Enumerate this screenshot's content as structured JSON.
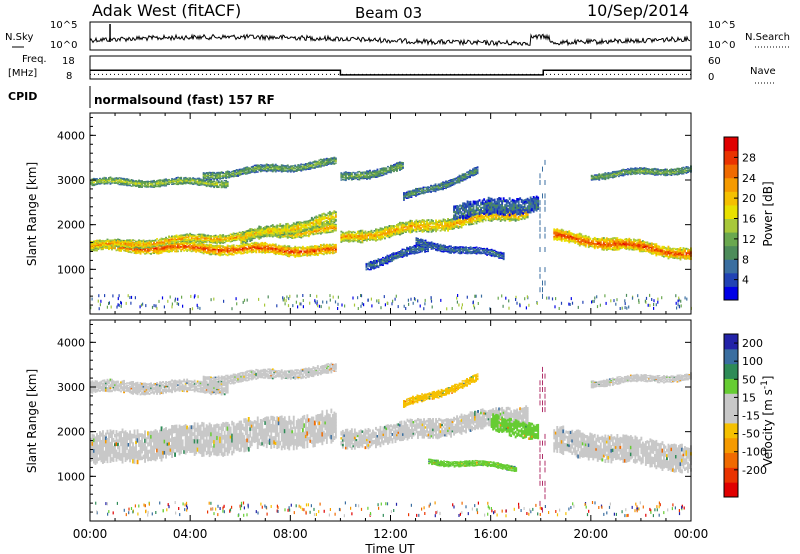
{
  "header": {
    "radar": "Adak West (fitACF)",
    "beam": "Beam 03",
    "date": "10/Sep/2014"
  },
  "noise_panel": {
    "left_label": "N.Sky",
    "right_label": "N.Search",
    "left_ticks": [
      "10^5",
      "10^0"
    ],
    "right_ticks": [
      "10^5",
      "10^0"
    ]
  },
  "freq_panel": {
    "left_label_1": "Freq.",
    "left_label_2": "[MHz]",
    "right_label": "Nave",
    "left_ticks": [
      "18",
      "8"
    ],
    "right_ticks": [
      "60",
      "0"
    ],
    "freq_steps": [
      {
        "t_start": 0,
        "t_end": 10.0,
        "mhz": 11.8
      },
      {
        "t_start": 10.0,
        "t_end": 18.1,
        "mhz": 9.8
      },
      {
        "t_start": 18.1,
        "t_end": 24.0,
        "mhz": 11.8
      }
    ],
    "nave_level": 12
  },
  "cpid": {
    "label": "CPID",
    "text": "normalsound (fast) 157 RF"
  },
  "chart_data": [
    {
      "type": "heatmap",
      "title": "Power",
      "xlabel": "Time UT",
      "ylabel": "Slant Range [km]",
      "xlim": [
        0,
        24
      ],
      "ylim": [
        0,
        4500
      ],
      "x_ticks": [
        "00:00",
        "04:00",
        "08:00",
        "12:00",
        "16:00",
        "20:00",
        "00:00"
      ],
      "y_ticks": [
        "1000",
        "2000",
        "3000",
        "4000"
      ],
      "colorbar": {
        "label": "Power [dB]",
        "ticks": [
          "4",
          "8",
          "12",
          "16",
          "20",
          "24",
          "28"
        ],
        "colors": [
          "#0000e6",
          "#2142b4",
          "#3a6ea0",
          "#4d8c5a",
          "#6aa84f",
          "#a8c83a",
          "#e8e000",
          "#f5c000",
          "#f59a00",
          "#f06a00",
          "#ea3300",
          "#e00000"
        ]
      },
      "bands": [
        {
          "t_start": 0.0,
          "t_end": 9.8,
          "r_start": 1520,
          "r_end": 1420,
          "width": 220,
          "level": 24
        },
        {
          "t_start": 0.0,
          "t_end": 9.8,
          "r_start": 1520,
          "r_end": 1900,
          "width": 180,
          "level": 20
        },
        {
          "t_start": 6.0,
          "t_end": 9.8,
          "r_start": 1700,
          "r_end": 2150,
          "width": 260,
          "level": 18
        },
        {
          "t_start": 10.0,
          "t_end": 17.5,
          "r_start": 1700,
          "r_end": 2300,
          "width": 250,
          "level": 20
        },
        {
          "t_start": 14.5,
          "t_end": 18.0,
          "r_start": 2300,
          "r_end": 2500,
          "width": 350,
          "level": 8
        },
        {
          "t_start": 18.5,
          "t_end": 24.0,
          "r_start": 1750,
          "r_end": 1350,
          "width": 250,
          "level": 24
        },
        {
          "t_start": 0.0,
          "t_end": 5.5,
          "r_start": 2950,
          "r_end": 2950,
          "width": 150,
          "level": 14
        },
        {
          "t_start": 4.5,
          "t_end": 9.8,
          "r_start": 3100,
          "r_end": 3400,
          "width": 160,
          "level": 12
        },
        {
          "t_start": 10.0,
          "t_end": 12.5,
          "r_start": 3050,
          "r_end": 3300,
          "width": 180,
          "level": 12
        },
        {
          "t_start": 12.5,
          "t_end": 15.5,
          "r_start": 2600,
          "r_end": 3200,
          "width": 160,
          "level": 10
        },
        {
          "t_start": 11.0,
          "t_end": 13.5,
          "r_start": 1100,
          "r_end": 1500,
          "width": 180,
          "level": 8
        },
        {
          "t_start": 13.0,
          "t_end": 16.5,
          "r_start": 1600,
          "r_end": 1300,
          "width": 150,
          "level": 8
        },
        {
          "t_start": 20.0,
          "t_end": 24.0,
          "r_start": 3100,
          "r_end": 3250,
          "width": 140,
          "level": 12
        }
      ]
    },
    {
      "type": "heatmap",
      "title": "Velocity",
      "xlabel": "Time UT",
      "ylabel": "Slant Range [km]",
      "xlim": [
        0,
        24
      ],
      "ylim": [
        0,
        4500
      ],
      "x_ticks": [
        "00:00",
        "04:00",
        "08:00",
        "12:00",
        "16:00",
        "20:00",
        "00:00"
      ],
      "y_ticks": [
        "1000",
        "2000",
        "3000",
        "4000"
      ],
      "colorbar": {
        "label": "Velocity [m s^-1]",
        "ticks": [
          "200",
          "100",
          "50",
          "15",
          "-15",
          "-50",
          "-100",
          "-200"
        ],
        "colors": [
          "#2323a8",
          "#3a6ea0",
          "#2e8b57",
          "#66cc33",
          "#c8c8c8",
          "#c8c8c8",
          "#f5c000",
          "#f59a00",
          "#f06a00",
          "#ea3300",
          "#e00000"
        ]
      },
      "bands": [
        {
          "t_start": 0.0,
          "t_end": 9.8,
          "r_start": 1600,
          "r_end": 2100,
          "width": 650,
          "vel": 0
        },
        {
          "t_start": 10.0,
          "t_end": 17.5,
          "r_start": 1800,
          "r_end": 2400,
          "width": 400,
          "vel": 0
        },
        {
          "t_start": 16.0,
          "t_end": 18.0,
          "r_start": 2200,
          "r_end": 2000,
          "width": 350,
          "vel": 30
        },
        {
          "t_start": 18.5,
          "t_end": 24.0,
          "r_start": 1800,
          "r_end": 1400,
          "width": 550,
          "vel": 0
        },
        {
          "t_start": 0.0,
          "t_end": 5.5,
          "r_start": 3000,
          "r_end": 3000,
          "width": 250,
          "vel": 0
        },
        {
          "t_start": 4.5,
          "t_end": 9.8,
          "r_start": 3150,
          "r_end": 3400,
          "width": 200,
          "vel": 0
        },
        {
          "t_start": 12.5,
          "t_end": 15.5,
          "r_start": 2600,
          "r_end": 3200,
          "width": 160,
          "vel": -40
        },
        {
          "t_start": 13.5,
          "t_end": 17.0,
          "r_start": 1350,
          "r_end": 1200,
          "width": 120,
          "vel": 30
        },
        {
          "t_start": 20.0,
          "t_end": 24.0,
          "r_start": 3100,
          "r_end": 3250,
          "width": 150,
          "vel": 0
        }
      ]
    }
  ]
}
